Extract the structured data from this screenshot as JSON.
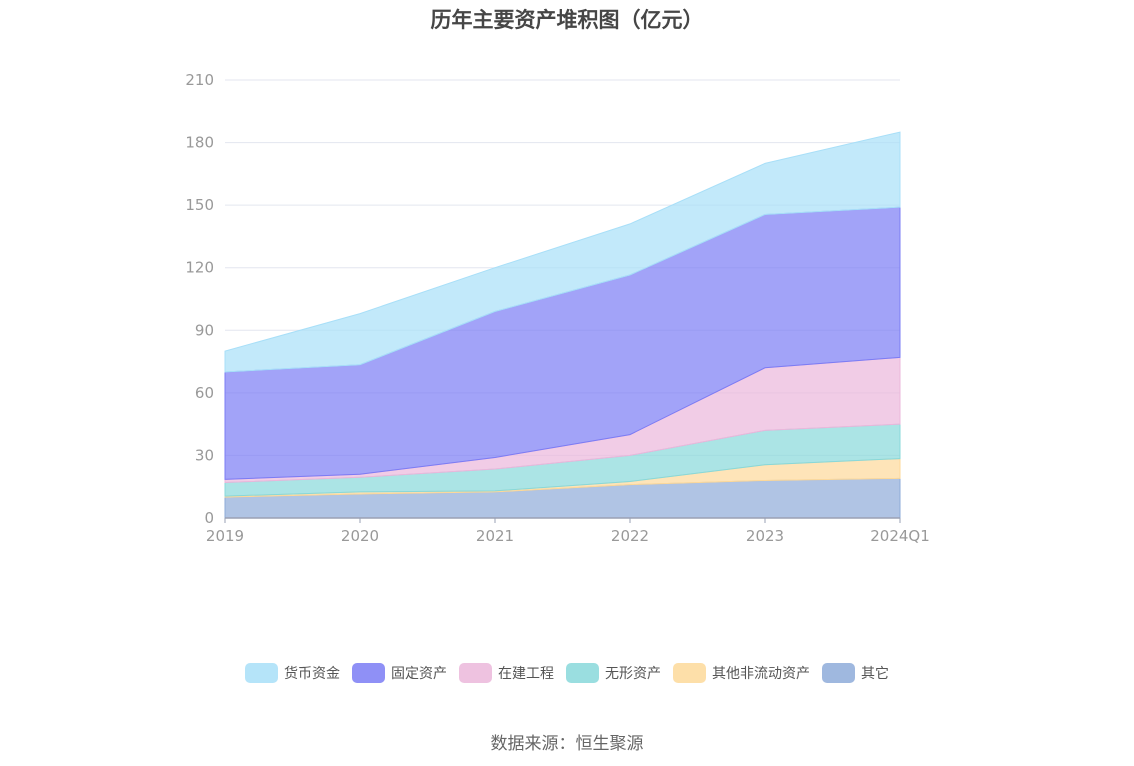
{
  "page": {
    "source": "数据来源：恒生聚源"
  },
  "chart_data": {
    "type": "area",
    "stacked": true,
    "title": "历年主要资产堆积图（亿元）",
    "xlabel": "",
    "ylabel": "",
    "categories": [
      "2019",
      "2020",
      "2021",
      "2022",
      "2023",
      "2024Q1"
    ],
    "ylim": [
      0,
      210
    ],
    "yticks": [
      0,
      30,
      60,
      90,
      120,
      150,
      180,
      210
    ],
    "grid": true,
    "legend_position": "bottom",
    "series": [
      {
        "name": "其它",
        "color": "#8eabd9",
        "values": [
          10,
          11.5,
          12.5,
          16,
          18,
          19
        ]
      },
      {
        "name": "其他非流动资产",
        "color": "#fdd99a",
        "values": [
          0.5,
          1,
          0.5,
          1.5,
          7.5,
          9.5
        ]
      },
      {
        "name": "无形资产",
        "color": "#88d8da",
        "values": [
          6.5,
          7,
          10.5,
          12.5,
          16.5,
          16.5
        ]
      },
      {
        "name": "在建工程",
        "color": "#ebb7db",
        "values": [
          1.5,
          1.5,
          5.5,
          10,
          30,
          32
        ]
      },
      {
        "name": "固定资产",
        "color": "#7b7cf5",
        "values": [
          51.5,
          52.5,
          70,
          76.5,
          73.5,
          72
        ]
      },
      {
        "name": "货币资金",
        "color": "#a8dff8",
        "values": [
          10,
          24.5,
          21,
          24.5,
          24.5,
          36
        ]
      }
    ],
    "legend_order": [
      "货币资金",
      "固定资产",
      "在建工程",
      "无形资产",
      "其他非流动资产",
      "其它"
    ]
  }
}
